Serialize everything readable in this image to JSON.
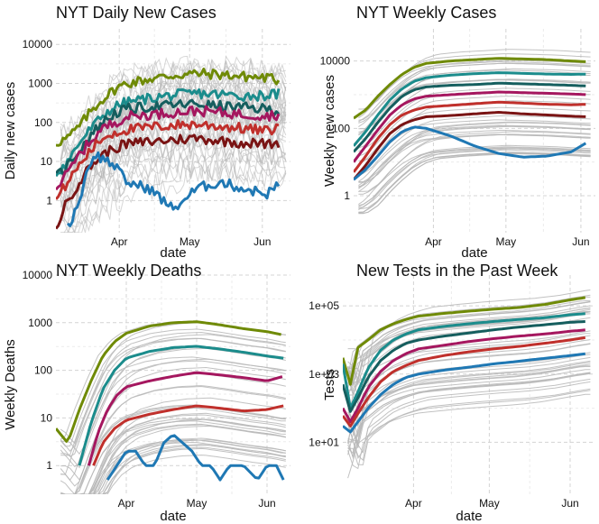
{
  "colors": {
    "gray": "#b7b7b7",
    "grid_major": "#d4d4d4",
    "grid_minor": "#ebebeb",
    "olive": "#6f8a06",
    "teal": "#1b8c8c",
    "dark_teal": "#155e5e",
    "magenta": "#a5175f",
    "red": "#c0302c",
    "dark_red": "#7a1414",
    "blue": "#1f78b4"
  },
  "chart_data": [
    {
      "type": "line",
      "title": "NYT Daily New Cases",
      "xlabel": "date",
      "ylabel": "Daily new cases",
      "yscale": "log",
      "xlim": [
        0,
        100
      ],
      "ylim": [
        0.15,
        25000
      ],
      "x_ticks": [
        {
          "value": 27,
          "label": "Apr"
        },
        {
          "value": 57,
          "label": "May"
        },
        {
          "value": 88,
          "label": "Jun"
        }
      ],
      "y_ticks": [
        {
          "value": 1,
          "label": "1"
        },
        {
          "value": 10,
          "label": "10"
        },
        {
          "value": 100,
          "label": "100"
        },
        {
          "value": 1000,
          "label": "1000"
        },
        {
          "value": 10000,
          "label": "10000"
        }
      ],
      "gray_lines": 40,
      "series": [
        {
          "name": "olive",
          "color": "olive",
          "x": [
            0,
            5,
            10,
            15,
            20,
            25,
            30,
            40,
            50,
            60,
            70,
            80,
            90,
            95
          ],
          "values": [
            30,
            40,
            80,
            200,
            400,
            700,
            1000,
            1300,
            1600,
            1800,
            1700,
            1500,
            1400,
            1200
          ]
        },
        {
          "name": "teal",
          "color": "teal",
          "x": [
            0,
            5,
            10,
            15,
            20,
            25,
            30,
            40,
            50,
            60,
            70,
            80,
            90,
            95
          ],
          "values": [
            5,
            10,
            30,
            70,
            150,
            250,
            330,
            420,
            500,
            560,
            520,
            480,
            500,
            550
          ]
        },
        {
          "name": "dark teal",
          "color": "dark_teal",
          "x": [
            0,
            5,
            10,
            15,
            20,
            25,
            30,
            40,
            50,
            60,
            70,
            80,
            90,
            95
          ],
          "values": [
            4,
            8,
            20,
            50,
            100,
            170,
            220,
            250,
            280,
            300,
            260,
            240,
            220,
            200
          ]
        },
        {
          "name": "magenta",
          "color": "magenta",
          "x": [
            0,
            5,
            10,
            15,
            20,
            25,
            30,
            40,
            50,
            60,
            70,
            80,
            90,
            95
          ],
          "values": [
            2,
            5,
            15,
            35,
            70,
            100,
            140,
            160,
            180,
            200,
            180,
            160,
            150,
            160
          ]
        },
        {
          "name": "red",
          "color": "red",
          "x": [
            0,
            5,
            10,
            15,
            20,
            25,
            30,
            40,
            50,
            60,
            70,
            80,
            90,
            95
          ],
          "values": [
            1,
            3,
            8,
            20,
            40,
            55,
            65,
            75,
            85,
            90,
            80,
            70,
            60,
            75
          ]
        },
        {
          "name": "dark red",
          "color": "dark_red",
          "x": [
            0,
            5,
            10,
            15,
            20,
            25,
            30,
            40,
            50,
            60,
            70,
            80,
            90,
            95
          ],
          "values": [
            0.2,
            1,
            3,
            8,
            15,
            22,
            28,
            32,
            36,
            40,
            34,
            30,
            28,
            30
          ]
        },
        {
          "name": "blue",
          "color": "blue",
          "x": [
            5,
            10,
            13,
            16,
            20,
            25,
            30,
            40,
            50,
            60,
            70,
            80,
            90,
            95
          ],
          "values": [
            0.2,
            1,
            5,
            15,
            12,
            8,
            3,
            2,
            0.6,
            2,
            3,
            2,
            1.5,
            2.5
          ]
        }
      ]
    },
    {
      "type": "line",
      "title": "NYT Weekly Cases",
      "xlabel": "date",
      "ylabel": "Weekly new cases",
      "yscale": "log",
      "xlim": [
        0,
        100
      ],
      "ylim": [
        0.08,
        90000
      ],
      "x_ticks": [
        {
          "value": 33,
          "label": "Apr"
        },
        {
          "value": 63,
          "label": "May"
        },
        {
          "value": 94,
          "label": "Jun"
        }
      ],
      "y_ticks": [
        {
          "value": 1,
          "label": "1"
        },
        {
          "value": 100,
          "label": "100"
        },
        {
          "value": 10000,
          "label": "10000"
        }
      ],
      "gray_lines": 40,
      "series": [
        {
          "name": "olive",
          "color": "olive",
          "x": [
            0,
            5,
            10,
            15,
            20,
            25,
            30,
            40,
            50,
            60,
            70,
            80,
            90,
            97
          ],
          "values": [
            200,
            350,
            900,
            2000,
            4000,
            6500,
            8500,
            10000,
            11000,
            12000,
            11500,
            11000,
            10000,
            9500
          ]
        },
        {
          "name": "teal",
          "color": "teal",
          "x": [
            0,
            5,
            10,
            15,
            20,
            25,
            30,
            40,
            50,
            60,
            70,
            80,
            90,
            97
          ],
          "values": [
            30,
            80,
            250,
            700,
            1500,
            2500,
            3200,
            3800,
            4200,
            4500,
            4300,
            4100,
            4000,
            4100
          ]
        },
        {
          "name": "dark teal",
          "color": "dark_teal",
          "x": [
            0,
            5,
            10,
            15,
            20,
            25,
            30,
            40,
            50,
            60,
            70,
            80,
            90,
            97
          ],
          "values": [
            20,
            50,
            150,
            400,
            900,
            1400,
            1700,
            1900,
            2000,
            2200,
            2100,
            2000,
            1900,
            1800
          ]
        },
        {
          "name": "magenta",
          "color": "magenta",
          "x": [
            0,
            5,
            10,
            15,
            20,
            25,
            30,
            40,
            50,
            60,
            70,
            80,
            90,
            97
          ],
          "values": [
            10,
            30,
            90,
            250,
            500,
            750,
            900,
            1000,
            1100,
            1200,
            1150,
            1100,
            1050,
            1000
          ]
        },
        {
          "name": "red",
          "color": "red",
          "x": [
            0,
            5,
            10,
            15,
            20,
            25,
            30,
            40,
            50,
            60,
            70,
            80,
            90,
            97
          ],
          "values": [
            5,
            15,
            50,
            130,
            250,
            350,
            430,
            480,
            540,
            600,
            560,
            520,
            500,
            520
          ]
        },
        {
          "name": "dark red",
          "color": "dark_red",
          "x": [
            0,
            5,
            10,
            15,
            20,
            25,
            30,
            40,
            50,
            60,
            70,
            80,
            90,
            97
          ],
          "values": [
            3,
            8,
            25,
            70,
            130,
            180,
            220,
            240,
            270,
            300,
            270,
            250,
            230,
            220
          ]
        },
        {
          "name": "blue",
          "color": "blue",
          "x": [
            0,
            5,
            10,
            15,
            20,
            25,
            30,
            40,
            50,
            60,
            70,
            80,
            90,
            97
          ],
          "values": [
            3,
            6,
            15,
            40,
            80,
            110,
            100,
            60,
            30,
            18,
            14,
            15,
            20,
            40
          ]
        }
      ]
    },
    {
      "type": "line",
      "title": "NYT Weekly Deaths",
      "xlabel": "date",
      "ylabel": "Weekly Deaths",
      "yscale": "log",
      "xlim": [
        0,
        100
      ],
      "ylim": [
        0.25,
        10000
      ],
      "x_ticks": [
        {
          "value": 30,
          "label": "Apr"
        },
        {
          "value": 60,
          "label": "May"
        },
        {
          "value": 90,
          "label": "Jun"
        }
      ],
      "y_ticks": [
        {
          "value": 1,
          "label": "1"
        },
        {
          "value": 10,
          "label": "10"
        },
        {
          "value": 100,
          "label": "100"
        },
        {
          "value": 1000,
          "label": "1000"
        },
        {
          "value": 10000,
          "label": "10000"
        }
      ],
      "gray_lines": 40,
      "series": [
        {
          "name": "olive",
          "color": "olive",
          "x": [
            0,
            5,
            10,
            15,
            20,
            25,
            30,
            40,
            50,
            60,
            70,
            80,
            90,
            97
          ],
          "values": [
            6,
            3,
            15,
            60,
            200,
            400,
            600,
            850,
            1000,
            1050,
            900,
            750,
            650,
            550
          ]
        },
        {
          "name": "teal",
          "color": "teal",
          "x": [
            10,
            15,
            20,
            25,
            30,
            40,
            50,
            60,
            70,
            80,
            90,
            97
          ],
          "values": [
            1,
            8,
            40,
            100,
            180,
            250,
            300,
            320,
            280,
            240,
            200,
            180
          ]
        },
        {
          "name": "magenta",
          "color": "magenta",
          "x": [
            14,
            18,
            22,
            26,
            30,
            40,
            50,
            60,
            70,
            80,
            90,
            97
          ],
          "values": [
            1,
            5,
            15,
            30,
            45,
            60,
            75,
            90,
            80,
            70,
            60,
            75
          ]
        },
        {
          "name": "red",
          "color": "red",
          "x": [
            16,
            20,
            25,
            30,
            40,
            50,
            60,
            70,
            80,
            90,
            97
          ],
          "values": [
            1,
            3,
            6,
            9,
            12,
            15,
            18,
            16,
            14,
            15,
            18
          ]
        },
        {
          "name": "blue",
          "color": "blue",
          "x": [
            22,
            26,
            30,
            34,
            38,
            42,
            46,
            50,
            54,
            58,
            62,
            66,
            70,
            74,
            80,
            86,
            90,
            94,
            97
          ],
          "values": [
            0.5,
            1,
            2,
            2,
            1,
            1,
            3,
            4.5,
            3,
            2,
            1,
            1,
            0.5,
            1,
            1,
            0.5,
            1,
            1,
            0.5
          ]
        }
      ]
    },
    {
      "type": "line",
      "title": "New Tests in the Past Week",
      "xlabel": "date",
      "ylabel": "Tests",
      "yscale": "log",
      "xlim": [
        0,
        100
      ],
      "ylim": [
        0.3,
        800000
      ],
      "x_ticks": [
        {
          "value": 28,
          "label": "Apr"
        },
        {
          "value": 58,
          "label": "May"
        },
        {
          "value": 90,
          "label": "Jun"
        }
      ],
      "y_ticks": [
        {
          "value": 10,
          "label": "1e+01"
        },
        {
          "value": 1000,
          "label": "1e+03"
        },
        {
          "value": 100000,
          "label": "1e+05"
        }
      ],
      "gray_lines": 40,
      "series": [
        {
          "name": "olive",
          "color": "olive",
          "x": [
            0,
            3,
            6,
            10,
            15,
            20,
            25,
            30,
            40,
            50,
            60,
            70,
            80,
            90,
            97
          ],
          "values": [
            3000,
            500,
            6000,
            10000,
            20000,
            30000,
            40000,
            50000,
            60000,
            70000,
            80000,
            90000,
            110000,
            150000,
            180000
          ]
        },
        {
          "name": "teal",
          "color": "teal",
          "x": [
            0,
            3,
            6,
            10,
            15,
            20,
            25,
            30,
            40,
            50,
            60,
            70,
            80,
            90,
            97
          ],
          "values": [
            2000,
            100,
            300,
            1500,
            5000,
            10000,
            15000,
            20000,
            25000,
            30000,
            35000,
            40000,
            45000,
            55000,
            60000
          ]
        },
        {
          "name": "dark teal",
          "color": "dark_teal",
          "x": [
            0,
            3,
            6,
            10,
            15,
            20,
            25,
            30,
            40,
            50,
            60,
            70,
            80,
            90,
            97
          ],
          "values": [
            500,
            80,
            200,
            800,
            2500,
            5000,
            8000,
            10000,
            13000,
            16000,
            20000,
            24000,
            28000,
            33000,
            35000
          ]
        },
        {
          "name": "magenta",
          "color": "magenta",
          "x": [
            0,
            3,
            6,
            10,
            15,
            20,
            25,
            30,
            40,
            50,
            60,
            70,
            80,
            90,
            97
          ],
          "values": [
            100,
            40,
            100,
            400,
            1200,
            2500,
            4000,
            5500,
            7000,
            9000,
            11000,
            13000,
            15000,
            18000,
            20000
          ]
        },
        {
          "name": "red",
          "color": "red",
          "x": [
            0,
            3,
            6,
            10,
            15,
            20,
            25,
            30,
            40,
            50,
            60,
            70,
            80,
            90,
            97
          ],
          "values": [
            60,
            30,
            70,
            200,
            600,
            1200,
            1800,
            2500,
            3500,
            4500,
            5500,
            6500,
            8000,
            10000,
            12000
          ]
        },
        {
          "name": "blue",
          "color": "blue",
          "x": [
            0,
            3,
            6,
            10,
            15,
            20,
            25,
            30,
            40,
            50,
            60,
            70,
            80,
            90,
            97
          ],
          "values": [
            30,
            20,
            40,
            100,
            250,
            500,
            800,
            1000,
            1300,
            1600,
            2000,
            2400,
            2900,
            3500,
            4000
          ]
        }
      ]
    }
  ]
}
